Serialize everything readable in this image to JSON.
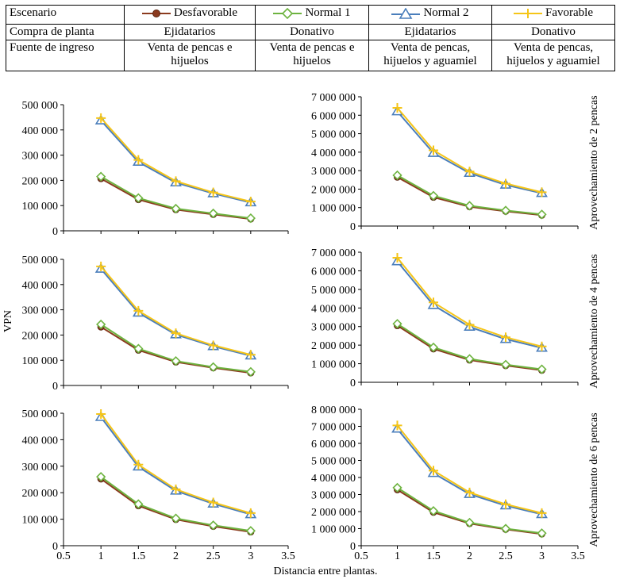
{
  "header": {
    "rows": [
      {
        "label": "Escenario",
        "cells": []
      },
      {
        "label": "Compra de planta",
        "cells": [
          "Ejidatarios",
          "Donativo",
          "Ejidatarios",
          "Donativo"
        ]
      },
      {
        "label": "Fuente de ingreso",
        "cells": [
          "Venta de pencas e hijuelos",
          "Venta de pencas e hijuelos",
          "Venta de pencas, hijuelos y aguamiel",
          "Venta de pencas, hijuelos y aguamiel"
        ]
      }
    ]
  },
  "legend": [
    {
      "name": "Desfavorable",
      "color": "#8B3A1E",
      "marker": "circle"
    },
    {
      "name": "Normal 1",
      "color": "#6DB33F",
      "marker": "diamond"
    },
    {
      "name": "Normal 2",
      "color": "#4A7EBB",
      "marker": "triangle"
    },
    {
      "name": "Favorable",
      "color": "#F5C518",
      "marker": "star"
    }
  ],
  "shared": {
    "ylabel": "VPN",
    "xlabel": "Distancia entre plantas.",
    "xlim": [
      0.5,
      3.5
    ],
    "xticks": [
      "0.5",
      "1",
      "1.5",
      "2",
      "2.5",
      "3",
      "3.5"
    ]
  },
  "row_labels": [
    "Aprovechamiento de 2 pencas",
    "Aprovechamiento de 4 pencas",
    "Aprovechamiento de 6 pencas"
  ],
  "chart_data": [
    {
      "type": "line",
      "x": [
        1,
        1.5,
        2,
        2.5,
        3
      ],
      "ylim": [
        0,
        500000
      ],
      "yticks": [
        "0",
        "100 000",
        "200 000",
        "300 000",
        "400 000",
        "500 000"
      ],
      "series": [
        {
          "name": "Desfavorable",
          "values": [
            207000,
            124000,
            84000,
            65000,
            47000
          ]
        },
        {
          "name": "Normal 1",
          "values": [
            215000,
            130000,
            88000,
            69000,
            50000
          ]
        },
        {
          "name": "Normal 2",
          "values": [
            437000,
            273000,
            191000,
            148000,
            112000
          ]
        },
        {
          "name": "Favorable",
          "values": [
            447000,
            281000,
            197000,
            152000,
            116000
          ]
        }
      ]
    },
    {
      "type": "line",
      "x": [
        1,
        1.5,
        2,
        2.5,
        3
      ],
      "ylim": [
        0,
        7000000
      ],
      "yticks": [
        "0",
        "1 000 000",
        "2 000 000",
        "3 000 000",
        "4 000 000",
        "5 000 000",
        "6 000 000",
        "7 000 000"
      ],
      "series": [
        {
          "name": "Desfavorable",
          "values": [
            2650000,
            1560000,
            1050000,
            800000,
            590000
          ]
        },
        {
          "name": "Normal 1",
          "values": [
            2750000,
            1640000,
            1100000,
            840000,
            630000
          ]
        },
        {
          "name": "Normal 2",
          "values": [
            6200000,
            3950000,
            2870000,
            2230000,
            1780000
          ]
        },
        {
          "name": "Favorable",
          "values": [
            6400000,
            4100000,
            2950000,
            2300000,
            1830000
          ]
        }
      ]
    },
    {
      "type": "line",
      "x": [
        1,
        1.5,
        2,
        2.5,
        3
      ],
      "ylim": [
        0,
        500000
      ],
      "yticks": [
        "0",
        "100 000",
        "200 000",
        "300 000",
        "400 000",
        "500 000"
      ],
      "series": [
        {
          "name": "Desfavorable",
          "values": [
            232000,
            140000,
            93000,
            70000,
            50000
          ]
        },
        {
          "name": "Normal 1",
          "values": [
            242000,
            146000,
            97000,
            73000,
            54000
          ]
        },
        {
          "name": "Normal 2",
          "values": [
            462000,
            288000,
            202000,
            155000,
            118000
          ]
        },
        {
          "name": "Favorable",
          "values": [
            472000,
            296000,
            207000,
            159000,
            122000
          ]
        }
      ]
    },
    {
      "type": "line",
      "x": [
        1,
        1.5,
        2,
        2.5,
        3
      ],
      "ylim": [
        0,
        7000000
      ],
      "yticks": [
        "0",
        "1 000 000",
        "2 000 000",
        "3 000 000",
        "4 000 000",
        "5 000 000",
        "6 000 000",
        "7 000 000"
      ],
      "series": [
        {
          "name": "Desfavorable",
          "values": [
            3050000,
            1800000,
            1200000,
            900000,
            650000
          ]
        },
        {
          "name": "Normal 1",
          "values": [
            3150000,
            1880000,
            1260000,
            950000,
            700000
          ]
        },
        {
          "name": "Normal 2",
          "values": [
            6500000,
            4150000,
            2980000,
            2320000,
            1850000
          ]
        },
        {
          "name": "Favorable",
          "values": [
            6700000,
            4300000,
            3100000,
            2420000,
            1930000
          ]
        }
      ]
    },
    {
      "type": "line",
      "x": [
        1,
        1.5,
        2,
        2.5,
        3
      ],
      "ylim": [
        0,
        500000
      ],
      "yticks": [
        "0",
        "100 000",
        "200 000",
        "300 000",
        "400 000",
        "500 000"
      ],
      "series": [
        {
          "name": "Desfavorable",
          "values": [
            252000,
            151000,
            99000,
            73000,
            52000
          ]
        },
        {
          "name": "Normal 1",
          "values": [
            260000,
            157000,
            103000,
            77000,
            56000
          ]
        },
        {
          "name": "Normal 2",
          "values": [
            485000,
            298000,
            207000,
            158000,
            118000
          ]
        },
        {
          "name": "Favorable",
          "values": [
            497000,
            306000,
            213000,
            163000,
            123000
          ]
        }
      ]
    },
    {
      "type": "line",
      "x": [
        1,
        1.5,
        2,
        2.5,
        3
      ],
      "ylim": [
        0,
        8000000
      ],
      "yticks": [
        "0",
        "1 000 000",
        "2 000 000",
        "3 000 000",
        "4 000 000",
        "5 000 000",
        "6 000 000",
        "7 000 000",
        "8 000 000"
      ],
      "series": [
        {
          "name": "Desfavorable",
          "values": [
            3280000,
            1960000,
            1300000,
            960000,
            690000
          ]
        },
        {
          "name": "Normal 1",
          "values": [
            3400000,
            2040000,
            1350000,
            1000000,
            730000
          ]
        },
        {
          "name": "Normal 2",
          "values": [
            6850000,
            4250000,
            3020000,
            2350000,
            1840000
          ]
        },
        {
          "name": "Favorable",
          "values": [
            7050000,
            4400000,
            3120000,
            2430000,
            1910000
          ]
        }
      ]
    }
  ]
}
